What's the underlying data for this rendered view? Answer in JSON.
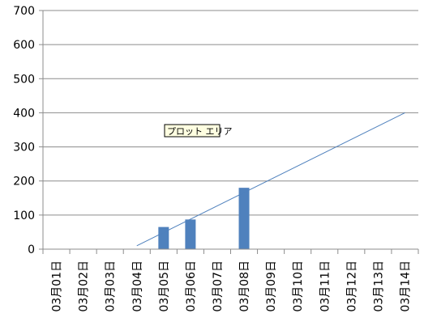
{
  "chart_data": {
    "type": "bar",
    "categories": [
      "03月01日",
      "03月02日",
      "03月03日",
      "03月04日",
      "03月05日",
      "03月06日",
      "03月07日",
      "03月08日",
      "03月09日",
      "03月10日",
      "03月11日",
      "03月12日",
      "03月13日",
      "03月14日"
    ],
    "values": [
      0,
      0,
      0,
      0,
      65,
      87,
      0,
      180,
      0,
      0,
      0,
      0,
      0,
      0
    ],
    "trendline": {
      "type": "linear",
      "start": {
        "category": "03月04日",
        "value": 10
      },
      "end": {
        "category": "03月14日",
        "value": 400
      }
    },
    "ylim": [
      0,
      700
    ],
    "yticks": [
      0,
      100,
      200,
      300,
      400,
      500,
      600,
      700
    ],
    "grid": true,
    "title": "",
    "xlabel": "",
    "ylabel": "",
    "bar_color": "#4f81bd",
    "line_color": "#4f81bd"
  },
  "tooltip": {
    "label": "プロット エリア"
  }
}
